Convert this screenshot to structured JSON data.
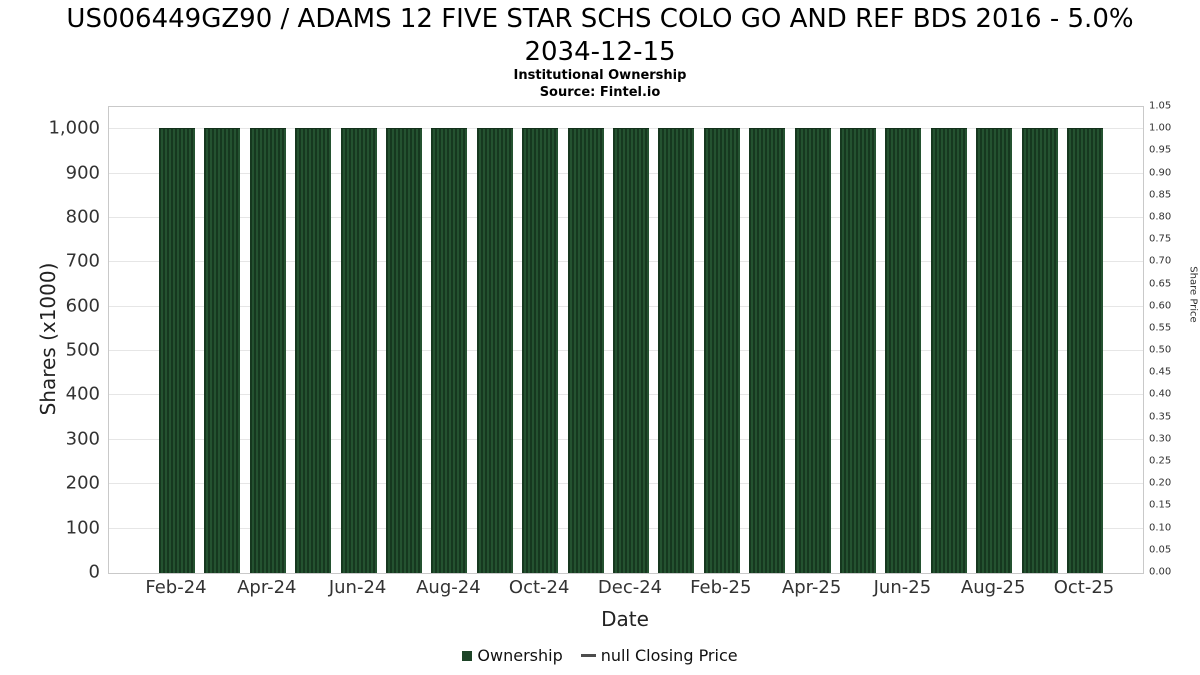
{
  "header": {
    "title": "US006449GZ90 / ADAMS 12 FIVE STAR SCHS COLO GO AND REF BDS 2016 - 5.0% 2034-12-15",
    "subtitle": "Institutional Ownership",
    "source": "Source: Fintel.io"
  },
  "chart_data": {
    "type": "bar",
    "title": "US006449GZ90 / ADAMS 12 FIVE STAR SCHS COLO GO AND REF BDS 2016 - 5.0% 2034-12-15",
    "subtitle": "Institutional Ownership",
    "source": "Source: Fintel.io",
    "xlabel": "Date",
    "ylabel_left": "Shares (x1000)",
    "ylabel_right": "Share Price",
    "grid": true,
    "legend_position": "bottom",
    "categories": [
      "Feb-24",
      "Mar-24",
      "Apr-24",
      "May-24",
      "Jun-24",
      "Jul-24",
      "Aug-24",
      "Sep-24",
      "Oct-24",
      "Nov-24",
      "Dec-24",
      "Jan-25",
      "Feb-25",
      "Mar-25",
      "Apr-25",
      "May-25",
      "Jun-25",
      "Jul-25",
      "Aug-25",
      "Sep-25",
      "Oct-25"
    ],
    "values": [
      1000,
      1000,
      1000,
      1000,
      1000,
      1000,
      1000,
      1000,
      1000,
      1000,
      1000,
      1000,
      1000,
      1000,
      1000,
      1000,
      1000,
      1000,
      1000,
      1000,
      1000
    ],
    "series_name": "Ownership",
    "x_tick_labels": [
      "Feb-24",
      "Apr-24",
      "Jun-24",
      "Aug-24",
      "Oct-24",
      "Dec-24",
      "Feb-25",
      "Apr-25",
      "Jun-25",
      "Aug-25",
      "Oct-25"
    ],
    "x_tick_step": 2,
    "left_tick_values": [
      0,
      100,
      200,
      300,
      400,
      500,
      600,
      700,
      800,
      900,
      1000
    ],
    "left_tick_labels": [
      "0",
      "100",
      "200",
      "300",
      "400",
      "500",
      "600",
      "700",
      "800",
      "900",
      "1,000"
    ],
    "left_axis_max": 1050,
    "right_tick_labels": [
      "0.00",
      "0.05",
      "0.10",
      "0.15",
      "0.20",
      "0.25",
      "0.30",
      "0.35",
      "0.40",
      "0.45",
      "0.50",
      "0.55",
      "0.60",
      "0.65",
      "0.70",
      "0.75",
      "0.80",
      "0.85",
      "0.90",
      "0.95",
      "1.00",
      "1.05"
    ],
    "right_axis_max": 1.05,
    "bar_color": "#1d4427",
    "dash_color": "#4d4d4d"
  },
  "legend": {
    "ownership_label": "Ownership",
    "closing_label": "null Closing Price"
  }
}
